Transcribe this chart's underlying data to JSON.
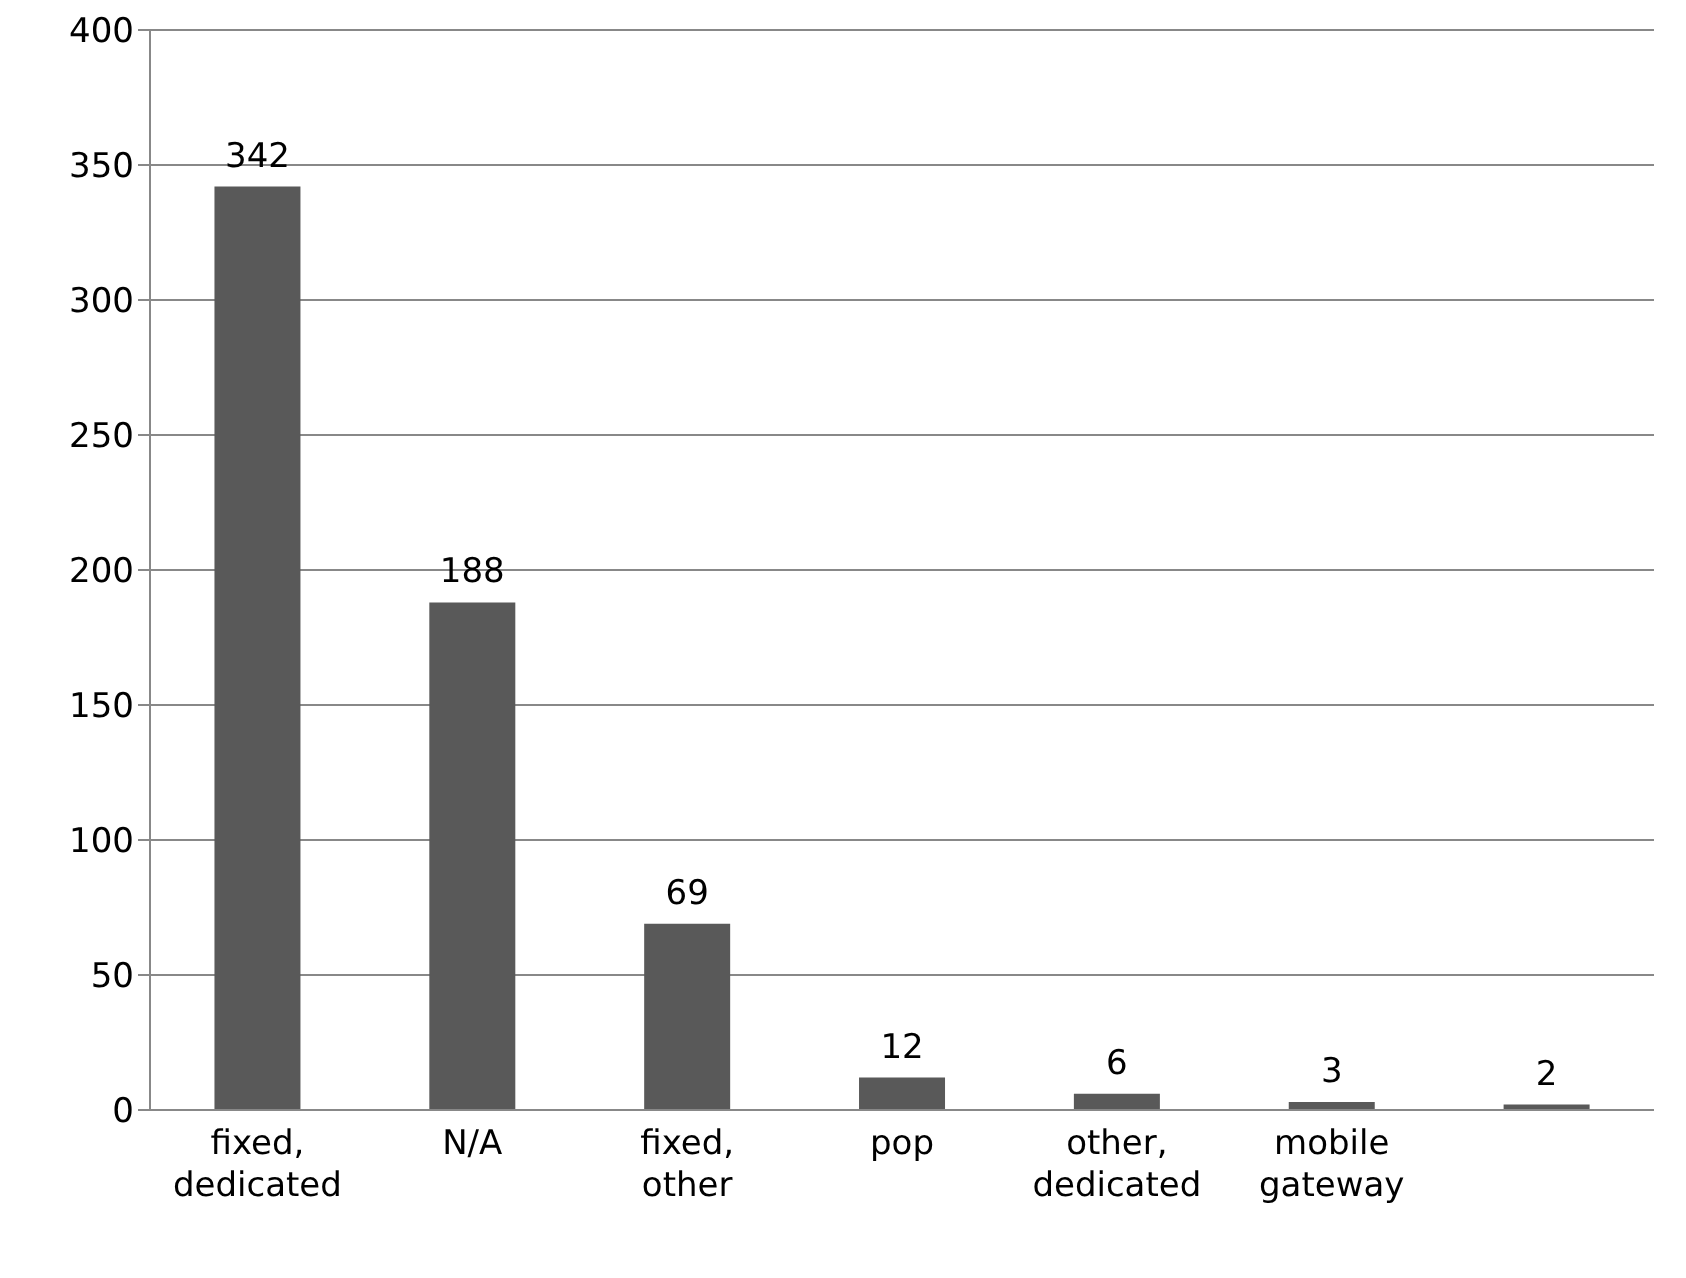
{
  "chart_data": {
    "type": "bar",
    "categories": [
      "fixed, dedicated",
      "N/A",
      "fixed, other",
      "pop",
      "other, dedicated",
      "mobile gateway",
      null
    ],
    "values": [
      342,
      188,
      69,
      12,
      6,
      3,
      2
    ],
    "color": "#595959",
    "ylim": [
      0,
      400
    ],
    "yticks": [
      0,
      50,
      100,
      150,
      200,
      250,
      300,
      350,
      400
    ],
    "grid": "y",
    "data_labels": true
  }
}
